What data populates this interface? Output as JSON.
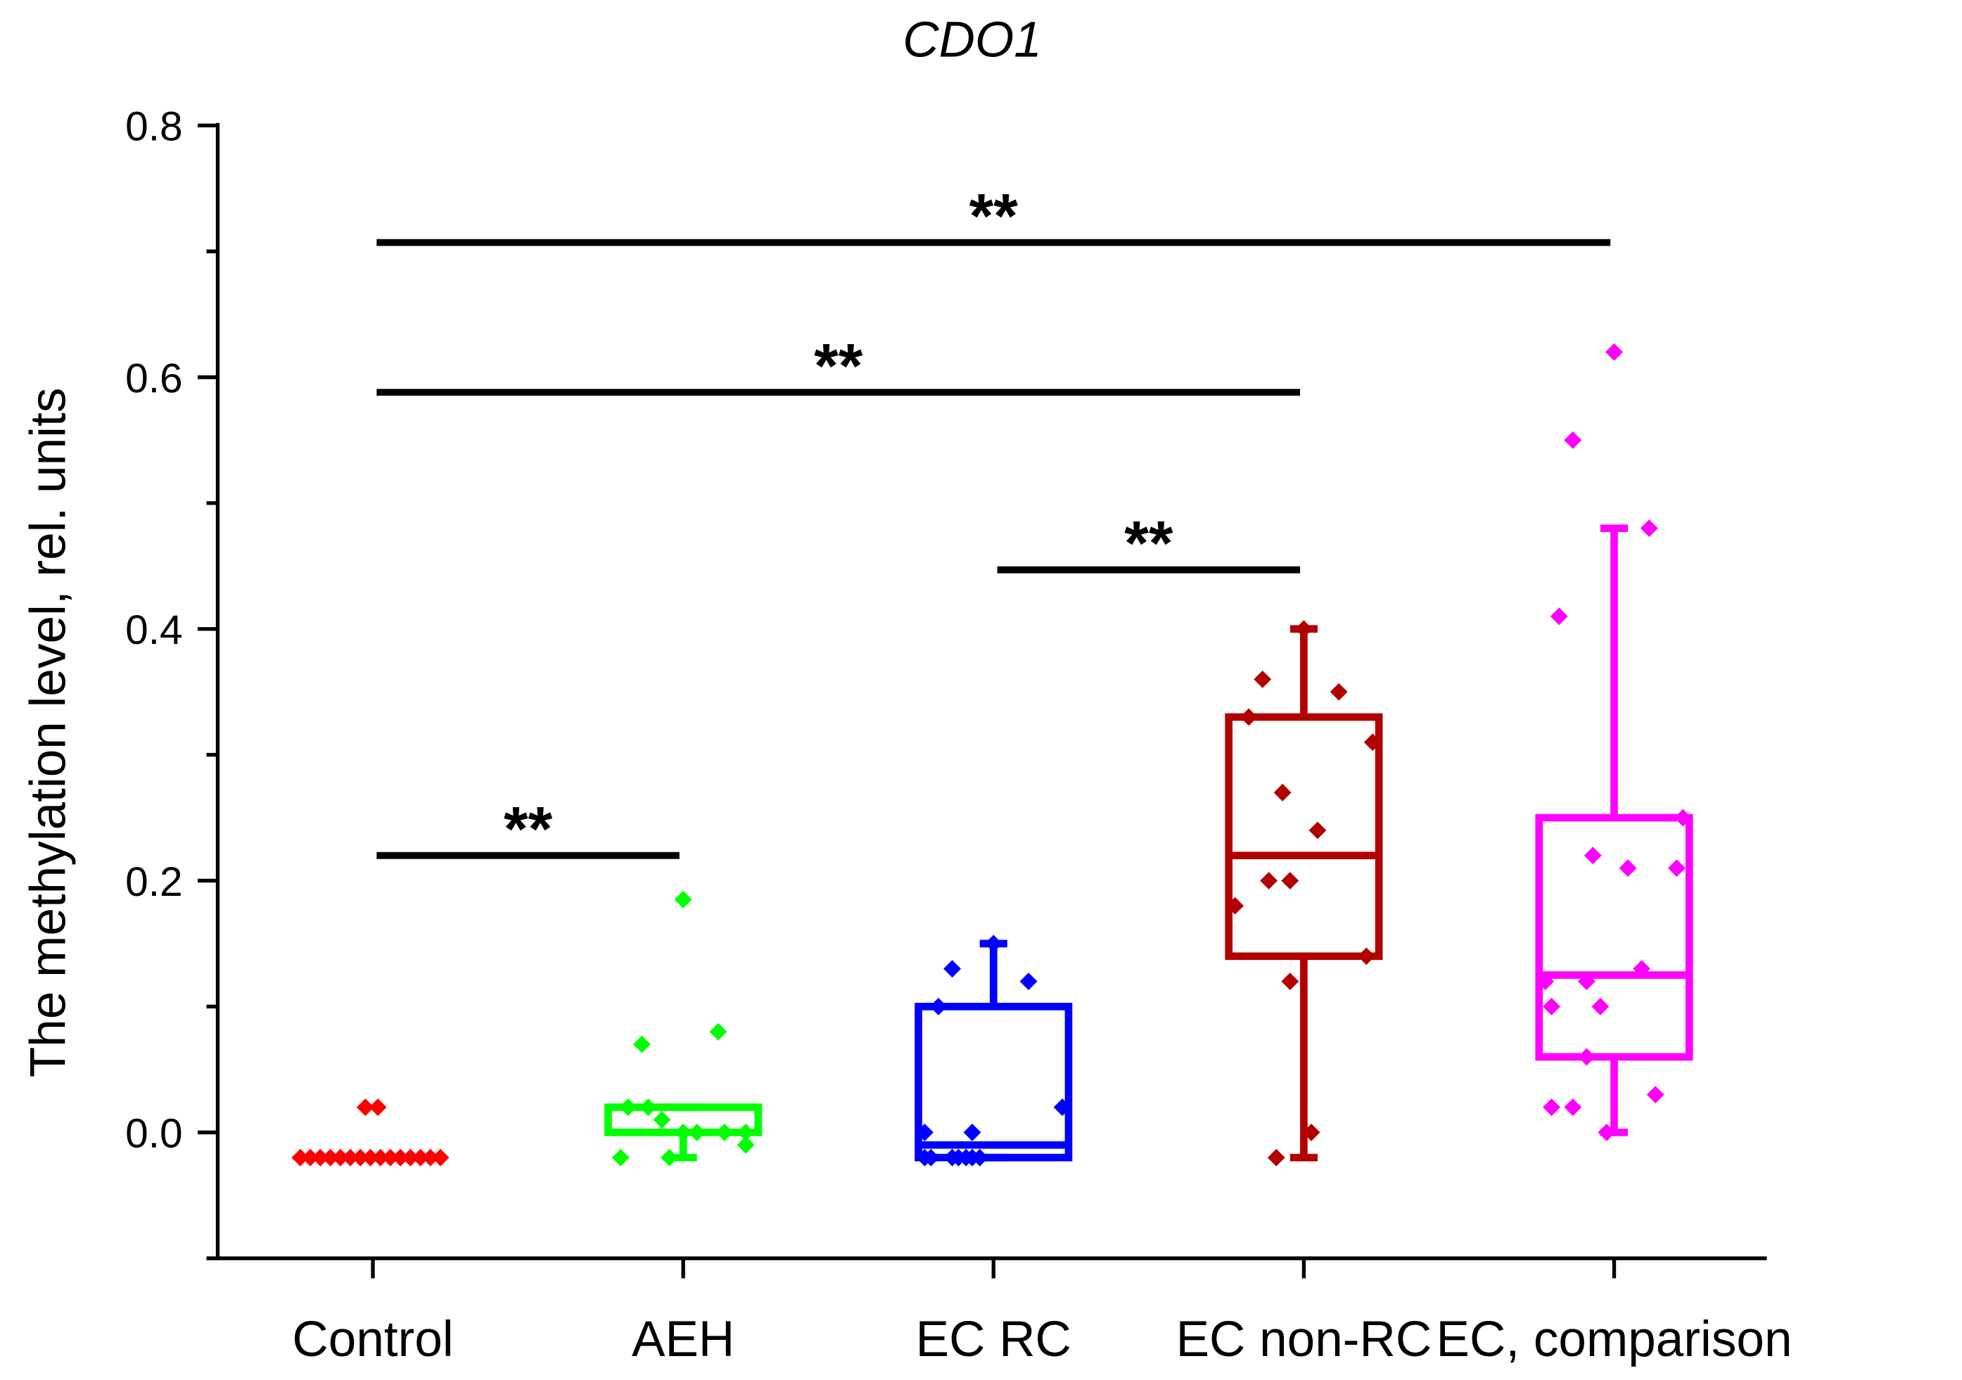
{
  "chart_data": {
    "type": "box",
    "title": "CDO1",
    "xlabel": "",
    "ylabel": "The methylation level, rel. units",
    "ylim": [
      -0.1,
      0.8
    ],
    "yticks": [
      "0.0",
      "0.2",
      "0.4",
      "0.6",
      "0.8"
    ],
    "ytick_values": [
      0,
      0.2,
      0.4,
      0.6,
      0.8
    ],
    "grid": false,
    "categories": [
      "Control",
      "AEH",
      "EC RC",
      "EC non-RC",
      "EC, comparison"
    ],
    "groups": [
      {
        "name": "Control",
        "color": "#ff0000",
        "box": null,
        "points": [
          0.02,
          0.02,
          -0.02,
          -0.02,
          -0.02,
          -0.02,
          -0.02,
          -0.02,
          -0.02,
          -0.02,
          -0.02,
          -0.02,
          -0.02,
          -0.02,
          -0.02,
          -0.02,
          -0.02
        ]
      },
      {
        "name": "AEH",
        "color": "#00ff00",
        "box": {
          "q1": 0.0,
          "median": 0.0,
          "q3": 0.02,
          "whisker_low": -0.02,
          "whisker_high": 0.02
        },
        "points": [
          0.185,
          0.07,
          0.08,
          0.02,
          0.02,
          0.01,
          0.0,
          0.0,
          0.0,
          0.0,
          -0.01,
          -0.02,
          -0.02
        ]
      },
      {
        "name": "EC RC",
        "color": "#0000ff",
        "box": {
          "q1": -0.02,
          "median": -0.01,
          "q3": 0.1,
          "whisker_low": -0.02,
          "whisker_high": 0.15
        },
        "points": [
          0.15,
          0.13,
          0.12,
          0.1,
          0.02,
          0.0,
          0.0,
          -0.02,
          -0.02,
          -0.02,
          -0.02,
          -0.02,
          -0.02,
          -0.02
        ]
      },
      {
        "name": "EC non-RC",
        "color": "#b20000",
        "box": {
          "q1": 0.14,
          "median": 0.22,
          "q3": 0.33,
          "whisker_low": -0.02,
          "whisker_high": 0.4
        },
        "points": [
          0.4,
          0.36,
          0.35,
          0.33,
          0.31,
          0.27,
          0.24,
          0.2,
          0.2,
          0.18,
          0.14,
          0.12,
          0.0,
          -0.02
        ]
      },
      {
        "name": "EC, comparison",
        "color": "#ff00ff",
        "box": {
          "q1": 0.06,
          "median": 0.125,
          "q3": 0.25,
          "whisker_low": 0.0,
          "whisker_high": 0.48
        },
        "points": [
          0.62,
          0.55,
          0.48,
          0.41,
          0.25,
          0.22,
          0.21,
          0.21,
          0.13,
          0.12,
          0.12,
          0.1,
          0.1,
          0.06,
          0.03,
          0.02,
          0.02,
          0.0
        ]
      }
    ],
    "significance": [
      {
        "from": "Control",
        "to": "AEH",
        "y": 0.22,
        "label": "**"
      },
      {
        "from": "EC RC",
        "to": "EC non-RC",
        "y": 0.447,
        "label": "**"
      },
      {
        "from": "Control",
        "to": "EC non-RC",
        "y": 0.588,
        "label": "**"
      },
      {
        "from": "Control",
        "to": "EC, comparison",
        "y": 0.707,
        "label": "**"
      }
    ]
  }
}
